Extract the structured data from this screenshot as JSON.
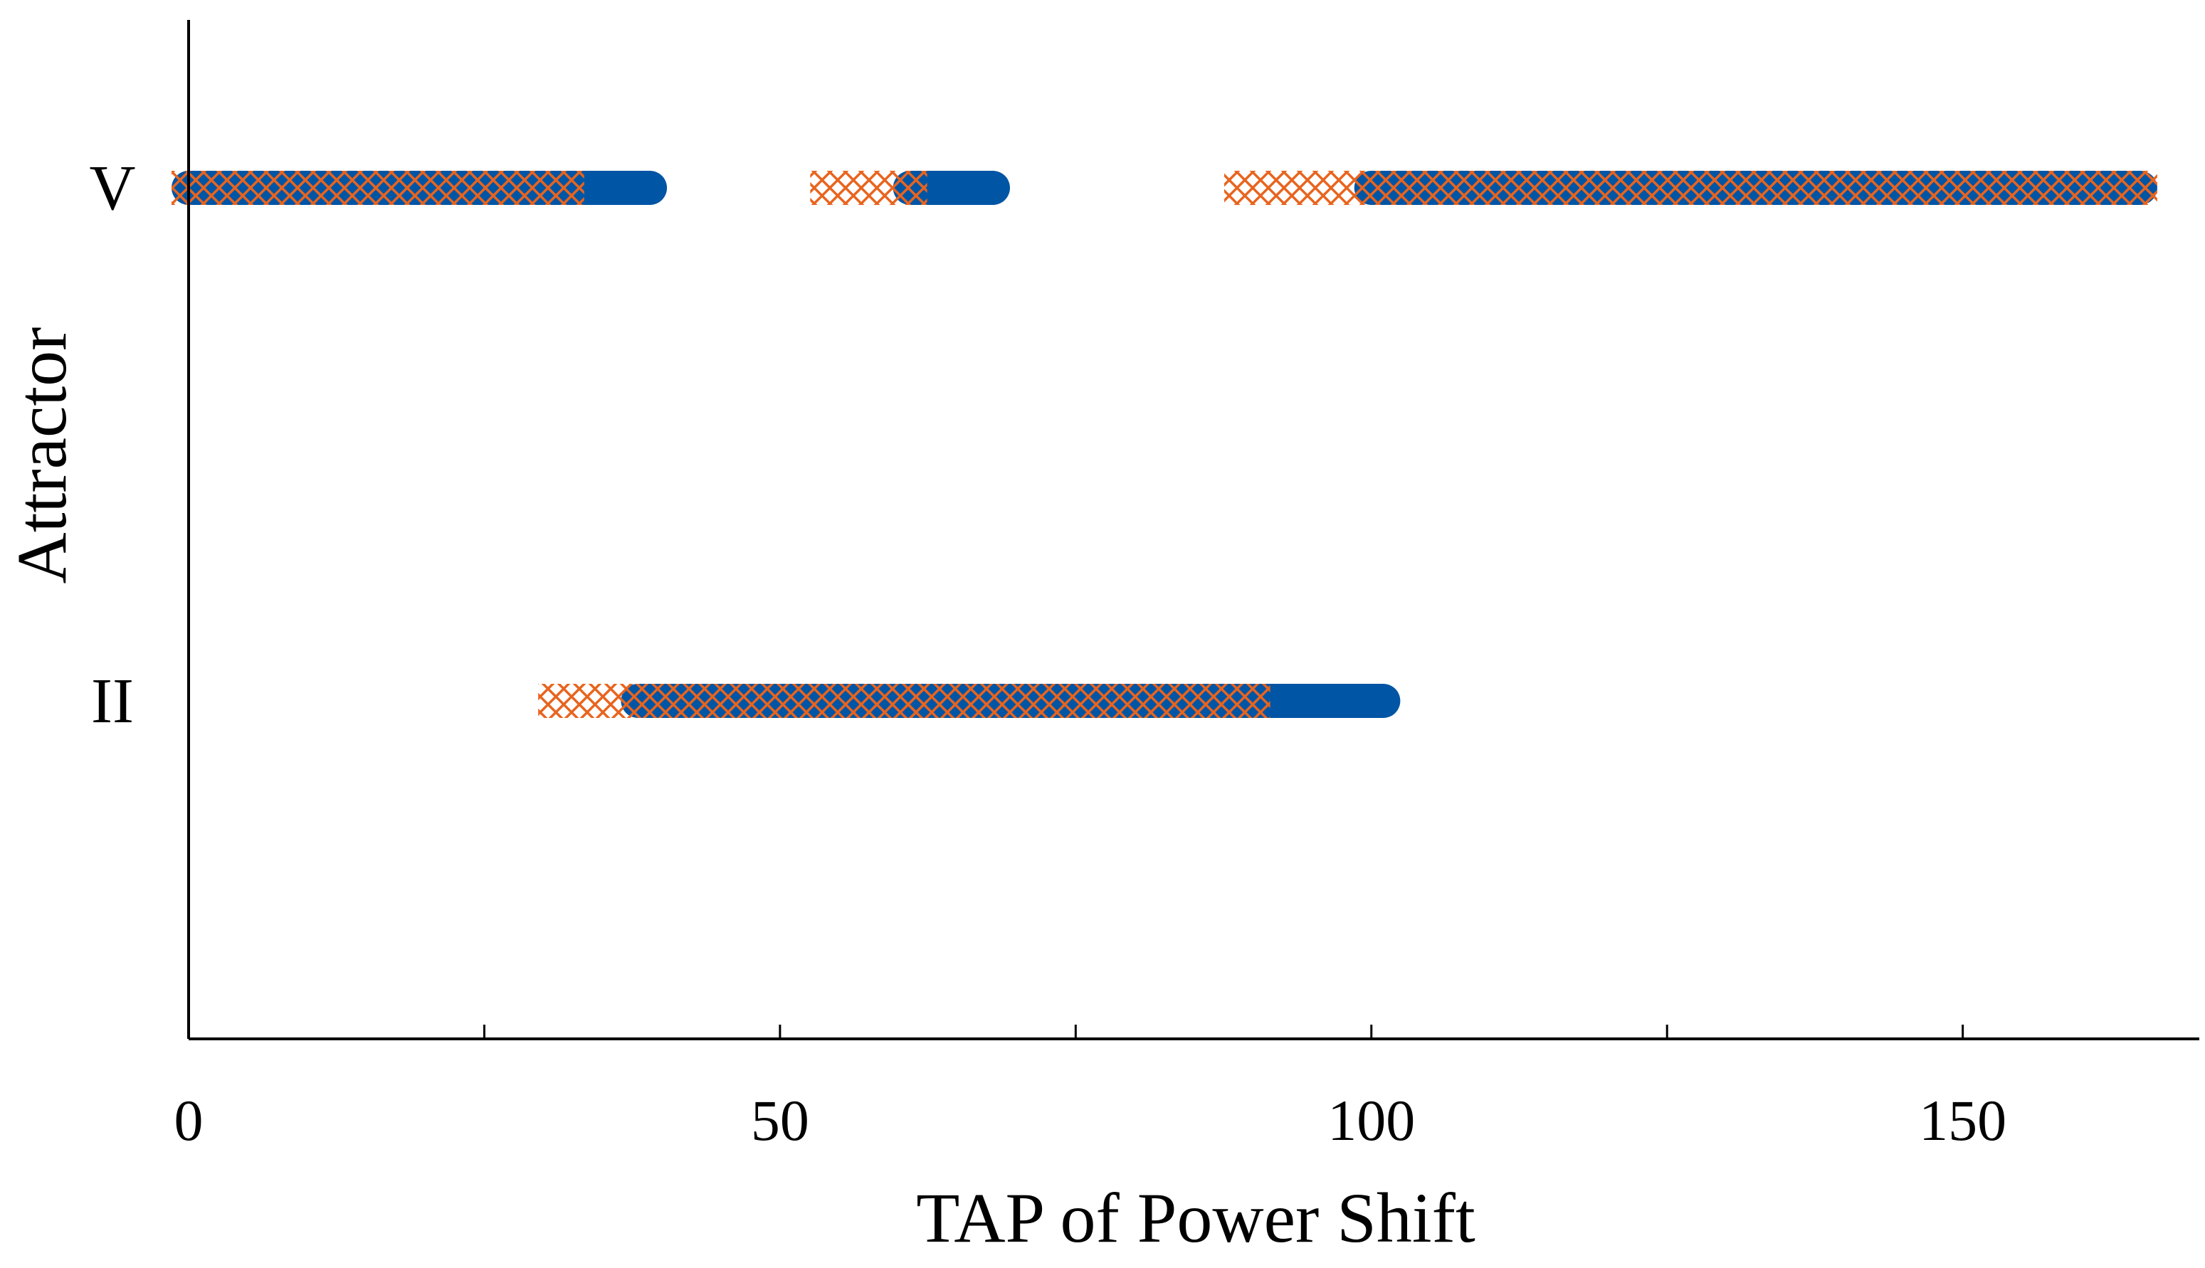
{
  "chart_data": {
    "type": "scatter",
    "title": "",
    "xlabel": "TAP of Power Shift",
    "ylabel": "Attractor",
    "xlim": [
      0,
      170
    ],
    "x_ticks": [
      0,
      25,
      50,
      75,
      100,
      125,
      150
    ],
    "x_tick_labels": [
      "0",
      "",
      "50",
      "",
      "100",
      "",
      "150"
    ],
    "y_categories": [
      "V",
      "II"
    ],
    "grid": false,
    "legend": "none",
    "series": [
      {
        "marker": "filled-circle",
        "color": "#0055a5",
        "ranges": [
          {
            "attractor": "V",
            "x": [
              0,
              39
            ]
          },
          {
            "attractor": "V",
            "x": [
              61,
              68
            ]
          },
          {
            "attractor": "V",
            "x": [
              100,
              165
            ]
          },
          {
            "attractor": "II",
            "x": [
              38,
              101
            ]
          }
        ]
      },
      {
        "marker": "x-cross",
        "color": "#e8641e",
        "ranges": [
          {
            "attractor": "V",
            "x": [
              0,
              32
            ]
          },
          {
            "attractor": "V",
            "x": [
              54,
              61
            ]
          },
          {
            "attractor": "V",
            "x": [
              89,
              165
            ]
          },
          {
            "attractor": "II",
            "x": [
              31,
              61
            ]
          },
          {
            "attractor": "II",
            "x": [
              62,
              90
            ]
          }
        ]
      }
    ]
  }
}
